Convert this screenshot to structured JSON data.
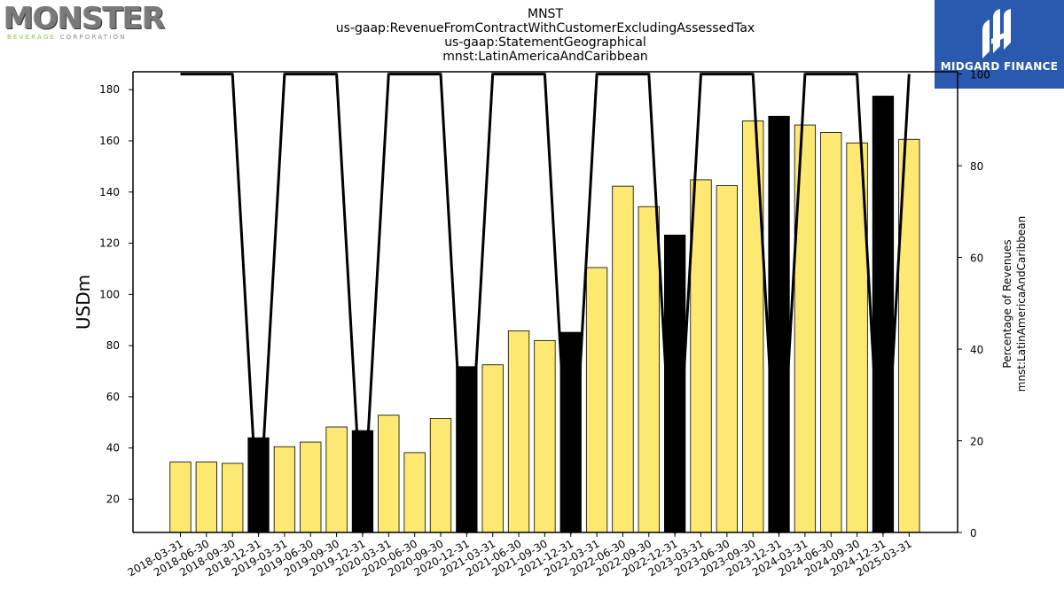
{
  "logos": {
    "left": {
      "name": "MONSTER",
      "sub_green": "BEVERAGE",
      "sub_rest": " CORPORATION"
    },
    "right": {
      "name": "MIDGARD FINANCE"
    }
  },
  "chart_data": {
    "type": "bar",
    "title_lines": [
      "MNST",
      "us-gaap:RevenueFromContractWithCustomerExcludingAssessedTax",
      "us-gaap:StatementGeographical",
      "mnst:LatinAmericaAndCaribbean"
    ],
    "ylabel": "USDm",
    "y2label_lines": [
      "Percentage of Revenues",
      "mnst:LatinAmericaAndCaribbean"
    ],
    "ylim": [
      7,
      187
    ],
    "y_ticks": [
      20,
      40,
      60,
      80,
      100,
      120,
      140,
      160,
      180
    ],
    "y2lim": [
      0,
      100.5
    ],
    "y2_ticks": [
      0,
      20,
      40,
      60,
      80,
      100
    ],
    "categories": [
      "2018-03-31",
      "2018-06-30",
      "2018-09-30",
      "2018-12-31",
      "2019-03-31",
      "2019-06-30",
      "2019-09-30",
      "2019-12-31",
      "2020-03-31",
      "2020-06-30",
      "2020-09-30",
      "2020-12-31",
      "2021-03-31",
      "2021-06-30",
      "2021-09-30",
      "2021-12-31",
      "2022-03-31",
      "2022-06-30",
      "2022-09-30",
      "2022-12-31",
      "2023-03-31",
      "2023-06-30",
      "2023-09-30",
      "2023-12-31",
      "2024-03-31",
      "2024-06-30",
      "2024-09-30",
      "2024-12-31",
      "2025-03-31"
    ],
    "series": [
      {
        "values": [
          34.5,
          34.5,
          34.0,
          44.0,
          40.5,
          42.3,
          48.2,
          46.8,
          52.8,
          38.2,
          51.5,
          71.8,
          72.5,
          85.8,
          82.0,
          85.2,
          110.5,
          142.3,
          134.3,
          123.2,
          144.8,
          142.5,
          167.8,
          169.6,
          166.2,
          163.3,
          159.2,
          177.5,
          160.6
        ],
        "fills": [
          "#fde972",
          "#fde972",
          "#fde972",
          "#000000",
          "#fde972",
          "#fde972",
          "#fde972",
          "#000000",
          "#fde972",
          "#fde972",
          "#fde972",
          "#000000",
          "#fde972",
          "#fde972",
          "#fde972",
          "#000000",
          "#fde972",
          "#fde972",
          "#fde972",
          "#000000",
          "#fde972",
          "#fde972",
          "#fde972",
          "#000000",
          "#fde972",
          "#fde972",
          "#fde972",
          "#000000",
          "#fde972"
        ]
      },
      {
        "axis": "right",
        "type": "line",
        "values": [
          100,
          100,
          100,
          0,
          100,
          100,
          100,
          0,
          100,
          100,
          100,
          0,
          100,
          100,
          100,
          0,
          100,
          100,
          100,
          0,
          100,
          100,
          100,
          0,
          100,
          100,
          100,
          0,
          100
        ]
      }
    ],
    "grid": false,
    "colors": {
      "bar_yellow": "#fde972",
      "bar_black": "#000000",
      "line": "#000000"
    }
  }
}
